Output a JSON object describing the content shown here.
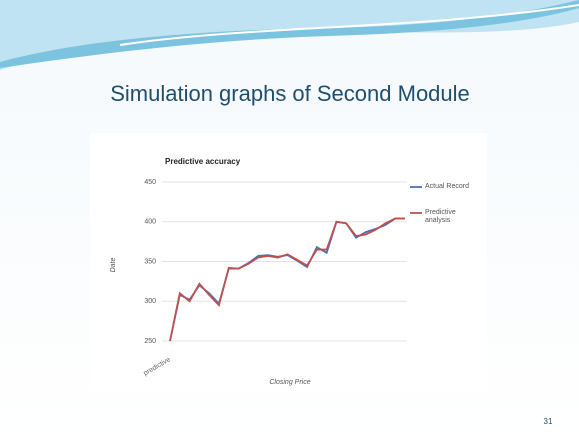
{
  "slide": {
    "title": "Simulation graphs of Second Module",
    "page_number": "31"
  },
  "chart_data": {
    "type": "line",
    "title": "Predictive accuracy",
    "x_label": "Closing Price",
    "y_label": "Date",
    "categories": [
      "predictive",
      null,
      null,
      null,
      null,
      null,
      null,
      null,
      null,
      null,
      null,
      null,
      null,
      null,
      null,
      null,
      null,
      null,
      null,
      null,
      null,
      null,
      null,
      null,
      null
    ],
    "series": [
      {
        "name": "Actual Record",
        "color": "#4a72b8",
        "values": [
          250,
          308,
          302,
          320,
          310,
          297,
          341,
          341,
          348,
          357,
          358,
          356,
          358,
          351,
          343,
          368,
          361,
          400,
          398,
          380,
          387,
          391,
          396,
          404,
          404
        ]
      },
      {
        "name": "Predictive analysis",
        "color": "#c0504d",
        "values": [
          250,
          310,
          300,
          322,
          308,
          295,
          342,
          341,
          347,
          355,
          357,
          355,
          359,
          352,
          345,
          365,
          365,
          400,
          398,
          382,
          384,
          390,
          398,
          404,
          404
        ]
      }
    ],
    "ylim": [
      250,
      450
    ],
    "yticks": [
      250,
      300,
      350,
      400,
      450
    ],
    "grid": true,
    "legend": "right"
  }
}
